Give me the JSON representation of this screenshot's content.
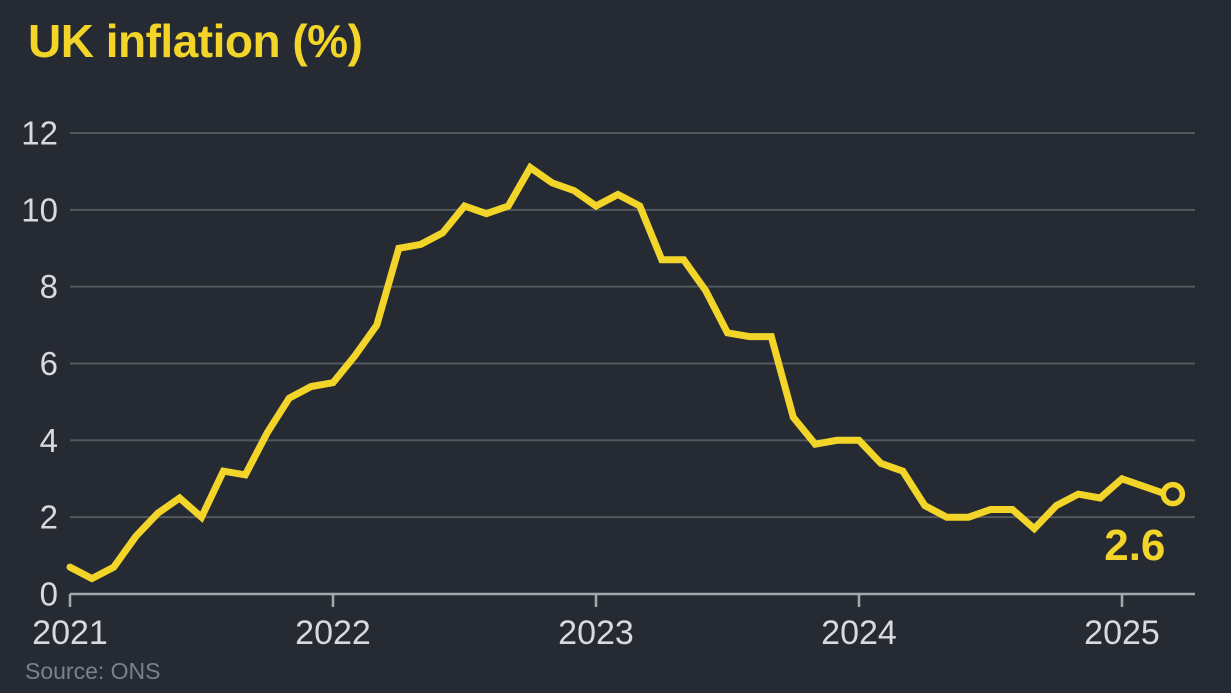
{
  "page": {
    "background": "#262a33"
  },
  "header": {
    "title": "UK inflation (%)",
    "title_color": "#f2d528"
  },
  "footer": {
    "source": "Source: ONS",
    "color": "#7b818a"
  },
  "chart_data": {
    "type": "line",
    "title": "UK inflation (%)",
    "xlabel": "",
    "ylabel": "",
    "frequency": "monthly",
    "x_start": "2021-01",
    "x_end": "2025-03",
    "x_tick_labels": [
      "2021",
      "2022",
      "2023",
      "2024",
      "2025"
    ],
    "y_ticks": [
      0,
      2,
      4,
      6,
      8,
      10,
      12
    ],
    "ylim": [
      0,
      12
    ],
    "grid": true,
    "legend": false,
    "values": [
      0.7,
      0.4,
      0.7,
      1.5,
      2.1,
      2.5,
      2.0,
      3.2,
      3.1,
      4.2,
      5.1,
      5.4,
      5.5,
      6.2,
      7.0,
      9.0,
      9.1,
      9.4,
      10.1,
      9.9,
      10.1,
      11.1,
      10.7,
      10.5,
      10.1,
      10.4,
      10.1,
      8.7,
      8.7,
      7.9,
      6.8,
      6.7,
      6.7,
      4.6,
      3.9,
      4.0,
      4.0,
      3.4,
      3.2,
      2.3,
      2.0,
      2.0,
      2.2,
      2.2,
      1.7,
      2.3,
      2.6,
      2.5,
      3.0,
      2.8,
      2.6
    ],
    "end_annotation": "2.6",
    "end_marker": "open-circle",
    "colors": {
      "line": "#f2d528",
      "grid": "#53585f",
      "axis": "#a4a8af",
      "tick_labels": "#d8dade",
      "annotation": "#f2d528",
      "background": "#262a33"
    }
  }
}
